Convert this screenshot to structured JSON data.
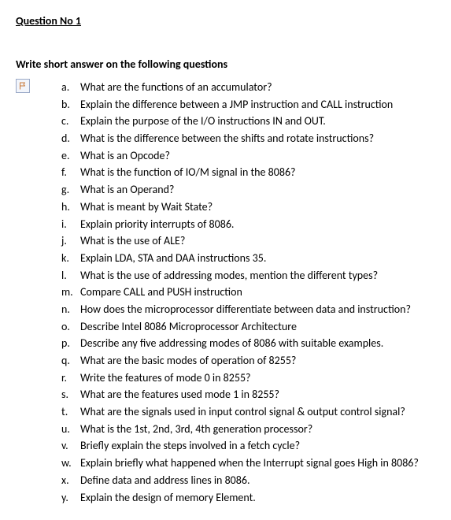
{
  "heading": "Question No 1",
  "instruction": "Write short answer on the following questions",
  "items": [
    {
      "m": "a.",
      "t": "What are the functions of an accumulator?"
    },
    {
      "m": "b.",
      "t": "Explain the difference between a JMP instruction and CALL instruction"
    },
    {
      "m": "c.",
      "t": "Explain the purpose of the I/O instructions IN and OUT."
    },
    {
      "m": "d.",
      "t": "What is the difference between the shifts and rotate instructions?"
    },
    {
      "m": "e.",
      "t": "What is an Opcode?"
    },
    {
      "m": "f.",
      "t": "What is the function of IO/M signal in the 8086?"
    },
    {
      "m": "g.",
      "t": "What is an Operand?"
    },
    {
      "m": "h.",
      "t": "What is meant by Wait State?"
    },
    {
      "m": "i.",
      "t": "Explain priority interrupts of 8086."
    },
    {
      "m": "j.",
      "t": "What is the use of ALE?"
    },
    {
      "m": "k.",
      "t": "Explain LDA, STA and DAA instructions 35."
    },
    {
      "m": "l.",
      "t": "What is the use of addressing modes, mention the different types?"
    },
    {
      "m": "m.",
      "t": "Compare CALL and PUSH instruction"
    },
    {
      "m": "n.",
      "t": "How does the microprocessor differentiate between data and instruction?"
    },
    {
      "m": "o.",
      "t": "Describe Intel 8086 Microprocessor Architecture"
    },
    {
      "m": "p.",
      "t": "Describe any five addressing modes of 8086 with suitable examples."
    },
    {
      "m": "q.",
      "t": "What are the basic modes of operation of 8255?"
    },
    {
      "m": "r.",
      "t": "Write the features of mode 0 in 8255?"
    },
    {
      "m": "s.",
      "t": "What are the features used mode 1 in 8255?"
    },
    {
      "m": "t.",
      "t": "What are the signals used in input control signal & output control signal?"
    },
    {
      "m": "u.",
      "t": "What is the 1st, 2nd, 3rd, 4th generation processor?"
    },
    {
      "m": "v.",
      "t": "Briefly explain the steps involved in a fetch cycle?"
    },
    {
      "m": "w.",
      "t": "Explain briefly what happened when the Interrupt signal goes High in 8086?"
    },
    {
      "m": "x.",
      "t": "Define data and address lines in 8086."
    },
    {
      "m": "y.",
      "t": " Explain the design of memory Element."
    }
  ]
}
